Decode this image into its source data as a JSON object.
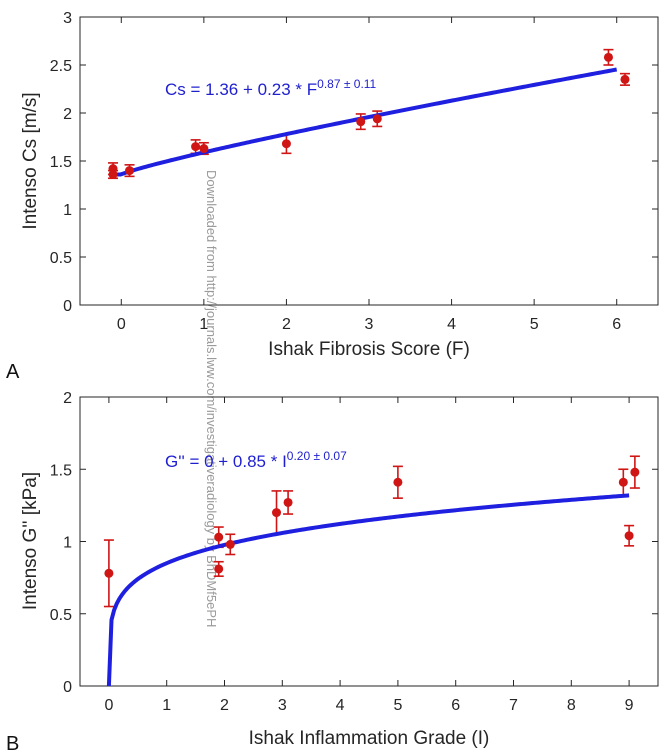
{
  "colors": {
    "fit": "#1f1fe0",
    "points": "#d01515",
    "axis": "#262626"
  },
  "watermark": "Downloaded from http://journals.lww.com/investigativeradiology by BhDMf5ePH",
  "chart_data": [
    {
      "type": "scatter",
      "panel_label": "A",
      "xlabel": "Ishak Fibrosis Score (F)",
      "ylabel": "Intenso Cs [m/s]",
      "xlim": [
        -0.5,
        6.5
      ],
      "ylim": [
        0,
        3
      ],
      "xticks": [
        0,
        1,
        2,
        3,
        4,
        5,
        6
      ],
      "yticks": [
        0,
        0.5,
        1,
        1.5,
        2,
        2.5,
        3
      ],
      "grid": false,
      "annotation": {
        "base": "Cs = 1.36 + 0.23 * F",
        "exponent": "0.87 ± 0.11"
      },
      "fit": {
        "name": "fit",
        "a": 1.36,
        "b": 0.23,
        "p": 0.87,
        "xrange": [
          -0.1,
          6.0
        ]
      },
      "series": [
        {
          "name": "",
          "x": [
            -0.1,
            -0.1,
            0.1,
            0.9,
            1.0,
            2.0,
            2.9,
            3.1,
            5.9,
            6.1
          ],
          "y": [
            1.42,
            1.36,
            1.4,
            1.65,
            1.63,
            1.68,
            1.91,
            1.94,
            2.58,
            2.35
          ],
          "err": [
            0.06,
            0.04,
            0.06,
            0.07,
            0.06,
            0.1,
            0.08,
            0.08,
            0.08,
            0.06
          ]
        }
      ]
    },
    {
      "type": "scatter",
      "panel_label": "B",
      "xlabel": "Ishak Inflammation Grade (I)",
      "ylabel": "Intenso G'' [kPa]",
      "xlim": [
        -0.5,
        9.5
      ],
      "ylim": [
        0,
        2
      ],
      "xticks": [
        0,
        1,
        2,
        3,
        4,
        5,
        6,
        7,
        8,
        9
      ],
      "yticks": [
        0,
        0.5,
        1,
        1.5,
        2
      ],
      "grid": false,
      "annotation": {
        "base": "G'' = 0 + 0.85 * I",
        "exponent": "0.20 ± 0.07"
      },
      "fit": {
        "name": "fit",
        "a": 0,
        "b": 0.85,
        "p": 0.2,
        "xrange": [
          0.0,
          9.0
        ]
      },
      "series": [
        {
          "name": "",
          "x": [
            0.0,
            1.9,
            1.9,
            2.1,
            2.9,
            3.1,
            5.0,
            8.9,
            9.0,
            9.1
          ],
          "y": [
            0.78,
            1.03,
            0.81,
            0.98,
            1.2,
            1.27,
            1.41,
            1.41,
            1.04,
            1.48
          ],
          "err": [
            0.23,
            0.07,
            0.05,
            0.07,
            0.15,
            0.08,
            0.11,
            0.09,
            0.07,
            0.11
          ]
        }
      ]
    }
  ]
}
